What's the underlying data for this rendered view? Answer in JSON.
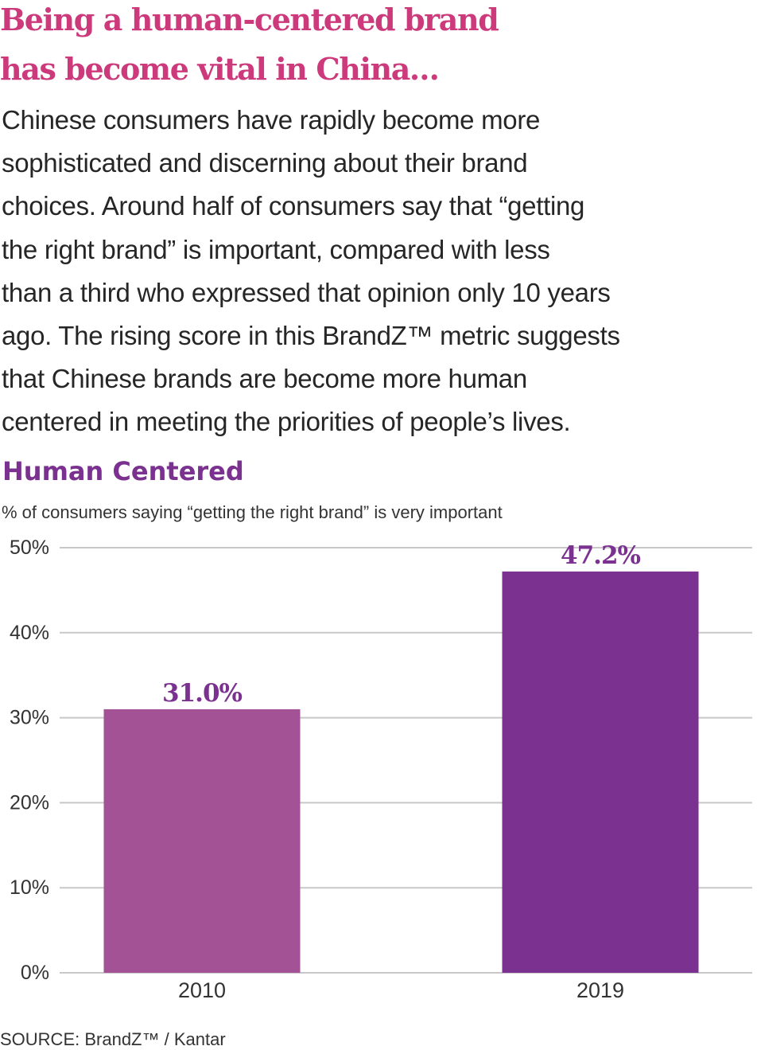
{
  "headline": {
    "lines": [
      "Being a human-centered brand",
      "has become vital in China…"
    ],
    "color": "#cc3a7c"
  },
  "body": {
    "lines": [
      "Chinese consumers have rapidly become more",
      "sophisticated and discerning about their brand",
      "choices. Around half of consumers say that “getting",
      "the right brand” is important, compared with less",
      "than a third who expressed that opinion only 10 years",
      "ago. The rising score in this BrandZ™ metric suggests",
      "that Chinese brands are become more human",
      "centered in meeting the priorities of people’s lives."
    ]
  },
  "chart_data": {
    "type": "bar",
    "title": "Human Centered",
    "subtitle": "% of consumers saying “getting the right brand” is very important",
    "categories": [
      "2010",
      "2019"
    ],
    "values": [
      31.0,
      47.2
    ],
    "data_labels": [
      "31.0%",
      "47.2%"
    ],
    "bar_colors": [
      "#a25295",
      "#7a318f"
    ],
    "label_color": "#7a318f",
    "ylim": [
      0,
      50
    ],
    "yticks": [
      0,
      10,
      20,
      30,
      40,
      50
    ],
    "ytick_labels": [
      "0%",
      "10%",
      "20%",
      "30%",
      "40%",
      "50%"
    ],
    "grid": true,
    "legend": "none",
    "xlabel": "",
    "ylabel": ""
  },
  "source": "SOURCE: BrandZ™ / Kantar"
}
